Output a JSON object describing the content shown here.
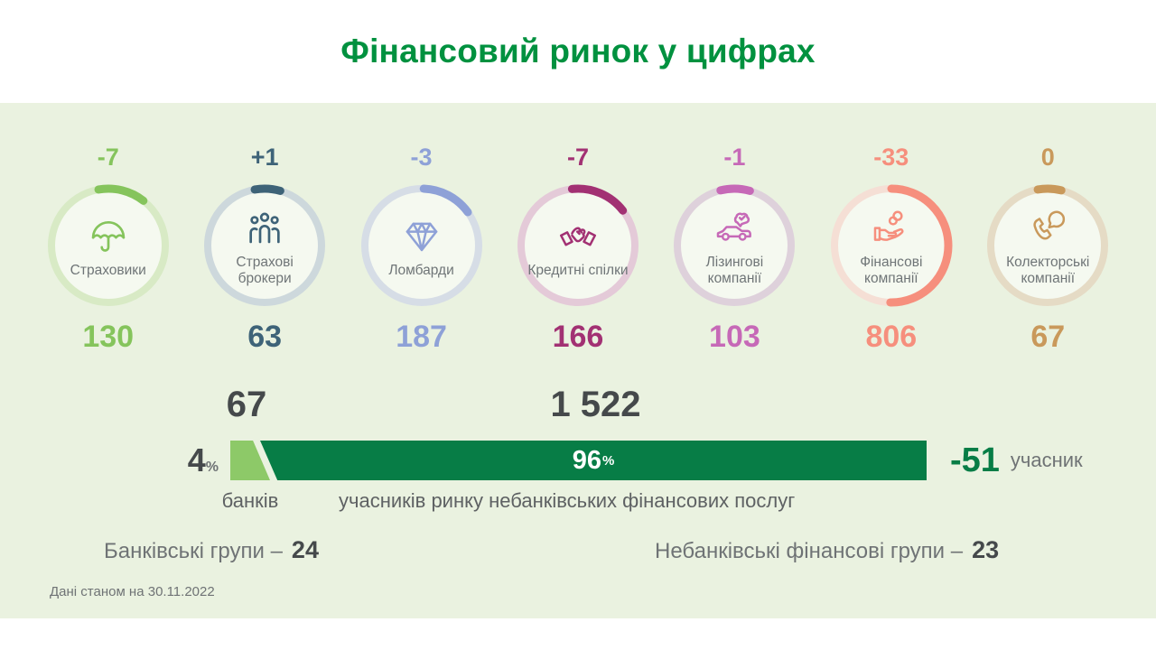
{
  "title": "Фінансовий ринок у цифрах",
  "footnote": "Дані станом на 30.11.2022",
  "categories": [
    {
      "label": "Страховики",
      "delta": "-7",
      "value": "130",
      "color": "#85C45C",
      "track": "#D8EAC5",
      "arc_start": -10,
      "arc_span": 48,
      "icon": "umbrella-icon"
    },
    {
      "label": "Страхові брокери",
      "delta": "+1",
      "value": "63",
      "color": "#3E6378",
      "track": "#CDD8DC",
      "arc_start": -10,
      "arc_span": 26,
      "icon": "people-group-icon"
    },
    {
      "label": "Ломбарди",
      "delta": "-3",
      "value": "187",
      "color": "#8EA1D7",
      "track": "#D6DDE6",
      "arc_start": 2,
      "arc_span": 52,
      "icon": "diamond-icon"
    },
    {
      "label": "Кредитні спілки",
      "delta": "-7",
      "value": "166",
      "color": "#A23173",
      "track": "#E4CAD8",
      "arc_start": -6,
      "arc_span": 58,
      "icon": "handshake-icon"
    },
    {
      "label": "Лізингові компанії",
      "delta": "-1",
      "value": "103",
      "color": "#C669B7",
      "track": "#DED1DB",
      "arc_start": -14,
      "arc_span": 30,
      "icon": "car-check-icon"
    },
    {
      "label": "Фінансові компанії",
      "delta": "-33",
      "value": "806",
      "color": "#F68F7D",
      "track": "#F5DFD5",
      "arc_start": 0,
      "arc_span": 181,
      "icon": "hand-coins-icon"
    },
    {
      "label": "Колекторські компанії",
      "delta": "0",
      "value": "67",
      "color": "#C9995B",
      "track": "#E5DBC5",
      "arc_start": -10,
      "arc_span": 24,
      "icon": "phone-chat-icon"
    }
  ],
  "bar": {
    "left_value": "67",
    "right_value": "1 522",
    "left_percent": "4",
    "right_percent": "96",
    "percent_sign": "%",
    "left_label": "банків",
    "right_label": "учасників ринку небанківських фінансових послуг",
    "change_value": "-51",
    "change_label": "учасник",
    "left_color": "#8DC968",
    "right_color": "#077D46"
  },
  "groups": {
    "left_label": "Банківські групи –",
    "left_value": "24",
    "right_label": "Небанківські фінансові групи –",
    "right_value": "23"
  },
  "chart_data": [
    {
      "type": "pie",
      "title": "Фінансовий ринок у цифрах",
      "subtitle": "кількість учасників за категоріями (кільцеві індикатори)",
      "categories": [
        "Страховики",
        "Страхові брокери",
        "Ломбарди",
        "Кредитні спілки",
        "Лізингові компанії",
        "Фінансові компанії",
        "Колекторські компанії"
      ],
      "values": [
        130,
        63,
        187,
        166,
        103,
        806,
        67
      ],
      "deltas": [
        -7,
        1,
        -3,
        -7,
        -1,
        -33,
        0
      ],
      "colors": [
        "#85C45C",
        "#3E6378",
        "#8EA1D7",
        "#A23173",
        "#C669B7",
        "#F68F7D",
        "#C9995B"
      ]
    },
    {
      "type": "bar",
      "categories": [
        "банків",
        "учасників ринку небанківських фінансових послуг"
      ],
      "values": [
        67,
        1522
      ],
      "percents": [
        4,
        96
      ],
      "annotation": "-51 учасник",
      "colors": [
        "#8DC968",
        "#077D46"
      ]
    },
    {
      "type": "table",
      "rows": [
        [
          "Банківські групи",
          24
        ],
        [
          "Небанківські фінансові групи",
          23
        ]
      ],
      "note": "Дані станом на 30.11.2022"
    }
  ]
}
